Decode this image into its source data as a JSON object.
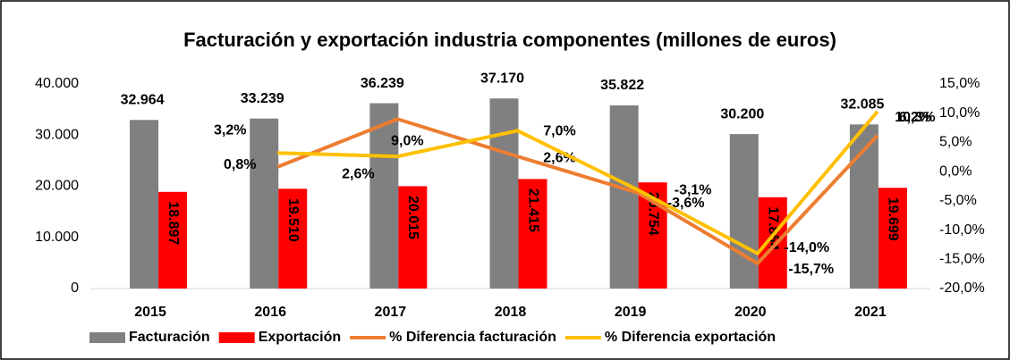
{
  "chart_data": {
    "type": "bar_line",
    "title": "Facturación y exportación industria componentes (millones de euros)",
    "categories": [
      "2015",
      "2016",
      "2017",
      "2018",
      "2019",
      "2020",
      "2021"
    ],
    "series": [
      {
        "name": "Facturación",
        "type": "bar",
        "color": "#808080",
        "values": [
          32964,
          33239,
          36239,
          37170,
          35822,
          30200,
          32085
        ],
        "value_labels": [
          "32.964",
          "33.239",
          "36.239",
          "37.170",
          "35.822",
          "30.200",
          "32.085"
        ]
      },
      {
        "name": "Exportación",
        "type": "bar",
        "color": "#ff0000",
        "values": [
          18897,
          19510,
          20015,
          21415,
          20754,
          17854,
          19699
        ],
        "value_labels": [
          "18.897",
          "19.510",
          "20.015",
          "21.415",
          "20.754",
          "17.854",
          "19.699"
        ]
      },
      {
        "name": "% Diferencia facturación",
        "type": "line",
        "axis": "y2",
        "color": "#ed7d31",
        "values": [
          null,
          0.8,
          9.0,
          2.6,
          -3.6,
          -15.7,
          6.2
        ],
        "value_labels": [
          null,
          "0,8%",
          "9,0%",
          "2,6%",
          "-3,6%",
          "-15,7%",
          "6,2%"
        ]
      },
      {
        "name": "% Diferencia exportación",
        "type": "line",
        "axis": "y2",
        "color": "#ffc000",
        "values": [
          null,
          3.2,
          2.6,
          7.0,
          -3.1,
          -14.0,
          10.3
        ],
        "value_labels": [
          null,
          "3,2%",
          "2,6%",
          "7,0%",
          "-3,1%",
          "-14,0%",
          "10,3%"
        ]
      }
    ],
    "ylim": [
      0,
      40000
    ],
    "yticks": [
      0,
      {
        "value": 10000,
        "label": "10.000"
      },
      {
        "value": 20000,
        "label": "20.000"
      },
      {
        "value": 30000,
        "label": "30.000"
      },
      {
        "value": 40000,
        "label": "40.000"
      }
    ],
    "y2lim": [
      -20,
      15
    ],
    "y2ticks": [
      {
        "value": -20,
        "label": "-20,0%"
      },
      {
        "value": -15,
        "label": "-15,0%"
      },
      {
        "value": -10,
        "label": "-10,0%"
      },
      {
        "value": -5,
        "label": "-5,0%"
      },
      {
        "value": 0,
        "label": "0,0%"
      },
      {
        "value": 5,
        "label": "5,0%"
      },
      {
        "value": 10,
        "label": "10,0%"
      },
      {
        "value": 15,
        "label": "15,0%"
      }
    ],
    "legend": "bottom"
  }
}
